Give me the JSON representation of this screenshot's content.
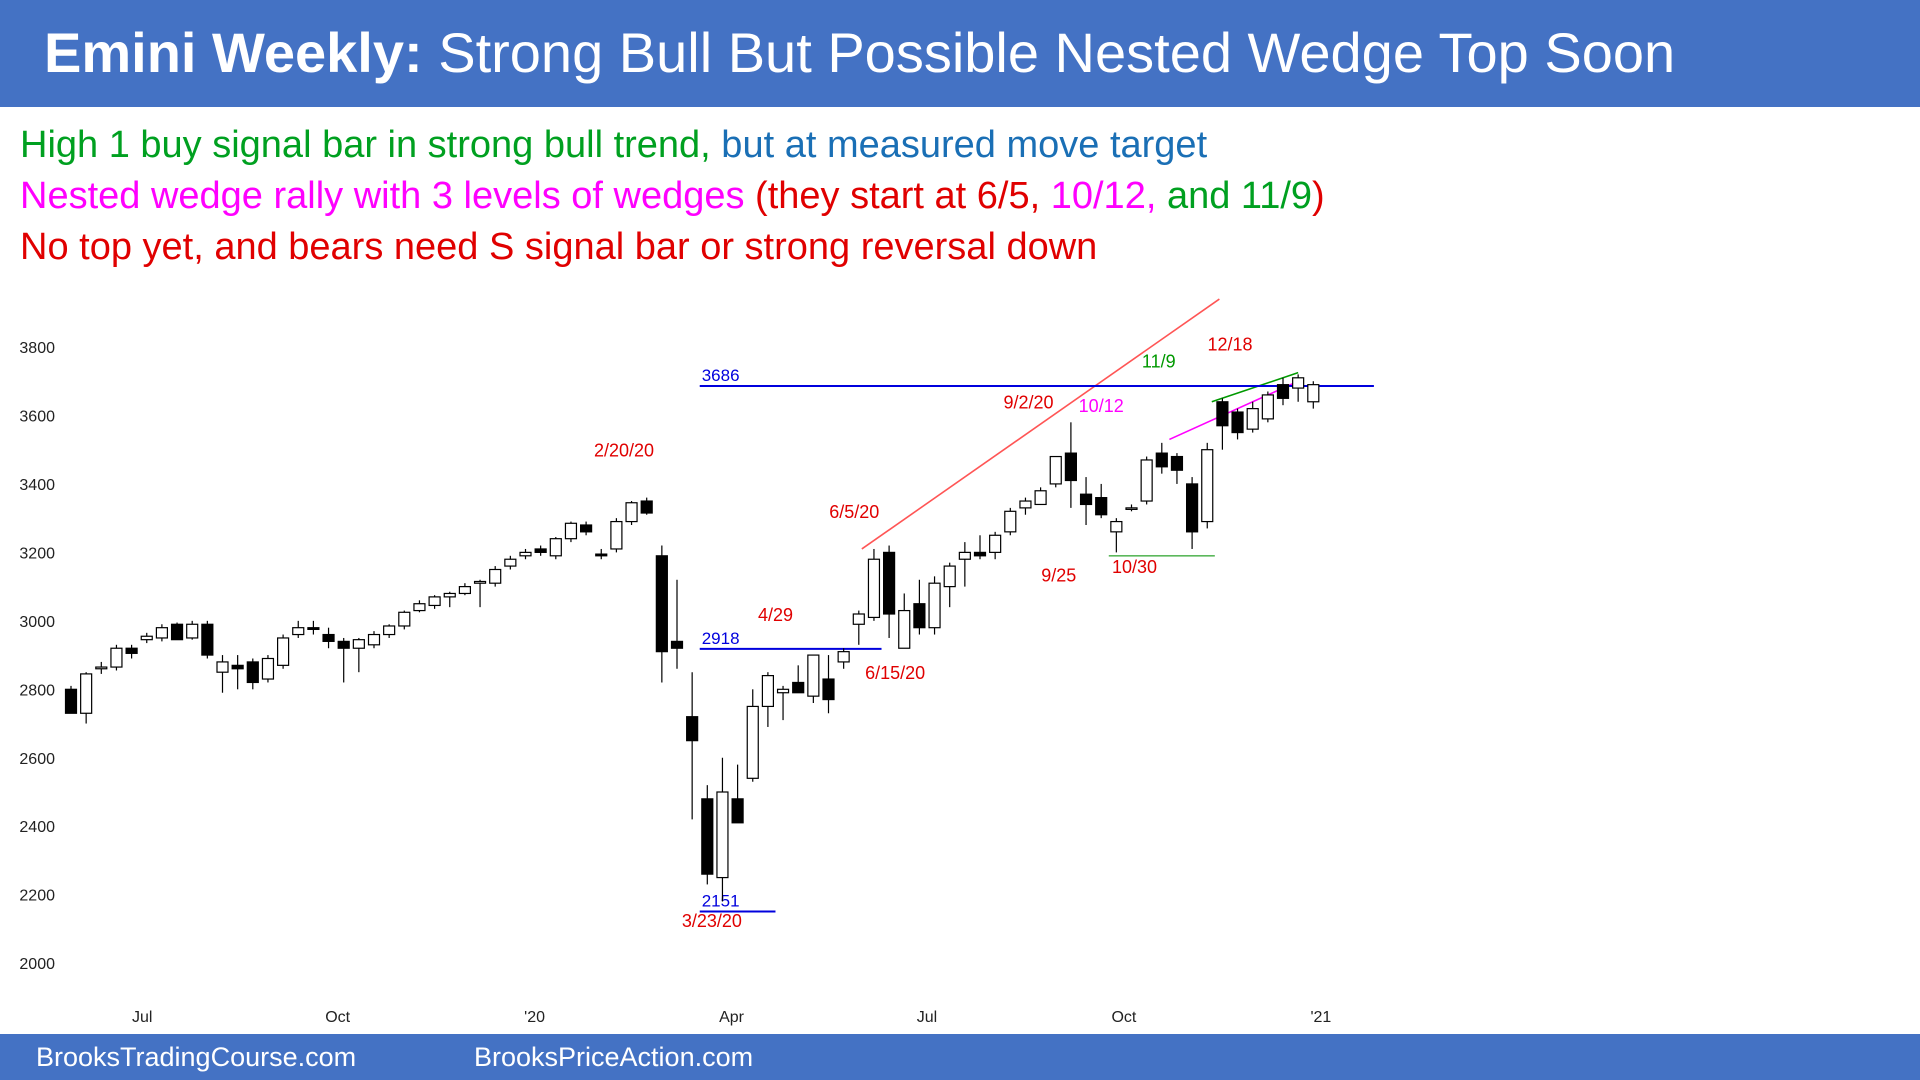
{
  "title": {
    "bold": "Emini Weekly:",
    "rest": "Strong Bull But Possible Nested Wedge Top Soon"
  },
  "notes": [
    [
      {
        "text": "High 1 buy signal bar in strong bull trend,",
        "color": "#00a020"
      },
      {
        "text": " but at measured move target",
        "color": "#1a6fb5"
      }
    ],
    [
      {
        "text": "Nested wedge rally with 3 levels of wedges ",
        "color": "#ff00ff"
      },
      {
        "text": "(they start at 6/5, ",
        "color": "#e00000"
      },
      {
        "text": "10/12,",
        "color": "#ff00ff"
      },
      {
        "text": " and 11/9",
        "color": "#00a020"
      },
      {
        "text": ")",
        "color": "#e00000"
      }
    ],
    [
      {
        "text": "No top yet, and bears need S signal bar or strong reversal down",
        "color": "#e00000"
      }
    ]
  ],
  "footer": {
    "left": "BrooksTradingCourse.com",
    "right": "BrooksPriceAction.com"
  },
  "chart_data": {
    "type": "candlestick",
    "title": "",
    "xlabel": "",
    "ylabel": "",
    "ylim": [
      1980,
      3800
    ],
    "xlim": [
      0,
      86
    ],
    "yticks": [
      2000,
      2200,
      2400,
      2600,
      2800,
      3000,
      3200,
      3400,
      3600,
      3800
    ],
    "xticks": [
      {
        "label": "Jul",
        "i": 4.7
      },
      {
        "label": "Oct",
        "i": 17.6
      },
      {
        "label": "'20",
        "i": 30.6
      },
      {
        "label": "Apr",
        "i": 43.6
      },
      {
        "label": "Jul",
        "i": 56.5
      },
      {
        "label": "Oct",
        "i": 69.5
      },
      {
        "label": "'21",
        "i": 82.5
      }
    ],
    "grid": false,
    "up_color": "#ffffff",
    "down_color": "#000000",
    "candles": [
      {
        "o": 2800,
        "h": 2810,
        "l": 2730,
        "c": 2730
      },
      {
        "o": 2730,
        "h": 2850,
        "l": 2700,
        "c": 2845
      },
      {
        "o": 2860,
        "h": 2880,
        "l": 2845,
        "c": 2865
      },
      {
        "o": 2865,
        "h": 2930,
        "l": 2855,
        "c": 2920
      },
      {
        "o": 2920,
        "h": 2930,
        "l": 2890,
        "c": 2905
      },
      {
        "o": 2945,
        "h": 2965,
        "l": 2935,
        "c": 2955
      },
      {
        "o": 2950,
        "h": 2990,
        "l": 2940,
        "c": 2980
      },
      {
        "o": 2990,
        "h": 2995,
        "l": 2950,
        "c": 2945
      },
      {
        "o": 2950,
        "h": 3000,
        "l": 2945,
        "c": 2990
      },
      {
        "o": 2990,
        "h": 3000,
        "l": 2890,
        "c": 2900
      },
      {
        "o": 2850,
        "h": 2900,
        "l": 2790,
        "c": 2880
      },
      {
        "o": 2870,
        "h": 2900,
        "l": 2800,
        "c": 2860
      },
      {
        "o": 2880,
        "h": 2890,
        "l": 2800,
        "c": 2820
      },
      {
        "o": 2830,
        "h": 2900,
        "l": 2820,
        "c": 2890
      },
      {
        "o": 2870,
        "h": 2960,
        "l": 2860,
        "c": 2950
      },
      {
        "o": 2960,
        "h": 3000,
        "l": 2950,
        "c": 2980
      },
      {
        "o": 2980,
        "h": 3000,
        "l": 2960,
        "c": 2975
      },
      {
        "o": 2960,
        "h": 2980,
        "l": 2920,
        "c": 2940
      },
      {
        "o": 2940,
        "h": 2950,
        "l": 2820,
        "c": 2920
      },
      {
        "o": 2920,
        "h": 2950,
        "l": 2850,
        "c": 2945
      },
      {
        "o": 2930,
        "h": 2970,
        "l": 2920,
        "c": 2960
      },
      {
        "o": 2960,
        "h": 2990,
        "l": 2950,
        "c": 2985
      },
      {
        "o": 2985,
        "h": 3030,
        "l": 2975,
        "c": 3025
      },
      {
        "o": 3030,
        "h": 3060,
        "l": 3025,
        "c": 3050
      },
      {
        "o": 3045,
        "h": 3075,
        "l": 3035,
        "c": 3070
      },
      {
        "o": 3070,
        "h": 3085,
        "l": 3040,
        "c": 3080
      },
      {
        "o": 3080,
        "h": 3110,
        "l": 3075,
        "c": 3100
      },
      {
        "o": 3110,
        "h": 3120,
        "l": 3040,
        "c": 3115
      },
      {
        "o": 3110,
        "h": 3160,
        "l": 3100,
        "c": 3150
      },
      {
        "o": 3160,
        "h": 3190,
        "l": 3150,
        "c": 3180
      },
      {
        "o": 3190,
        "h": 3210,
        "l": 3180,
        "c": 3200
      },
      {
        "o": 3210,
        "h": 3220,
        "l": 3190,
        "c": 3200
      },
      {
        "o": 3190,
        "h": 3245,
        "l": 3180,
        "c": 3240
      },
      {
        "o": 3240,
        "h": 3290,
        "l": 3230,
        "c": 3285
      },
      {
        "o": 3280,
        "h": 3290,
        "l": 3250,
        "c": 3260
      },
      {
        "o": 3195,
        "h": 3210,
        "l": 3180,
        "c": 3190
      },
      {
        "o": 3210,
        "h": 3300,
        "l": 3200,
        "c": 3290
      },
      {
        "o": 3290,
        "h": 3350,
        "l": 3280,
        "c": 3345
      },
      {
        "o": 3350,
        "h": 3360,
        "l": 3310,
        "c": 3315
      },
      {
        "o": 3190,
        "h": 3220,
        "l": 2820,
        "c": 2910
      },
      {
        "o": 2940,
        "h": 3120,
        "l": 2860,
        "c": 2920
      },
      {
        "o": 2720,
        "h": 2850,
        "l": 2420,
        "c": 2650
      },
      {
        "o": 2480,
        "h": 2520,
        "l": 2230,
        "c": 2260
      },
      {
        "o": 2250,
        "h": 2600,
        "l": 2180,
        "c": 2500
      },
      {
        "o": 2480,
        "h": 2580,
        "l": 2410,
        "c": 2410
      },
      {
        "o": 2540,
        "h": 2800,
        "l": 2530,
        "c": 2750
      },
      {
        "o": 2750,
        "h": 2850,
        "l": 2690,
        "c": 2840
      },
      {
        "o": 2790,
        "h": 2810,
        "l": 2710,
        "c": 2800
      },
      {
        "o": 2820,
        "h": 2870,
        "l": 2790,
        "c": 2790
      },
      {
        "o": 2780,
        "h": 2900,
        "l": 2760,
        "c": 2900
      },
      {
        "o": 2830,
        "h": 2900,
        "l": 2730,
        "c": 2770
      },
      {
        "o": 2880,
        "h": 2920,
        "l": 2860,
        "c": 2910
      },
      {
        "o": 2990,
        "h": 3030,
        "l": 2930,
        "c": 3020
      },
      {
        "o": 3010,
        "h": 3210,
        "l": 3000,
        "c": 3180
      },
      {
        "o": 3200,
        "h": 3220,
        "l": 2950,
        "c": 3020
      },
      {
        "o": 2920,
        "h": 3080,
        "l": 2920,
        "c": 3030
      },
      {
        "o": 3050,
        "h": 3120,
        "l": 2960,
        "c": 2980
      },
      {
        "o": 2980,
        "h": 3130,
        "l": 2960,
        "c": 3110
      },
      {
        "o": 3100,
        "h": 3170,
        "l": 3040,
        "c": 3160
      },
      {
        "o": 3180,
        "h": 3230,
        "l": 3100,
        "c": 3200
      },
      {
        "o": 3200,
        "h": 3250,
        "l": 3180,
        "c": 3190
      },
      {
        "o": 3200,
        "h": 3260,
        "l": 3180,
        "c": 3250
      },
      {
        "o": 3260,
        "h": 3330,
        "l": 3250,
        "c": 3320
      },
      {
        "o": 3330,
        "h": 3360,
        "l": 3310,
        "c": 3350
      },
      {
        "o": 3340,
        "h": 3390,
        "l": 3340,
        "c": 3380
      },
      {
        "o": 3400,
        "h": 3480,
        "l": 3390,
        "c": 3480
      },
      {
        "o": 3490,
        "h": 3580,
        "l": 3330,
        "c": 3410
      },
      {
        "o": 3370,
        "h": 3420,
        "l": 3280,
        "c": 3340
      },
      {
        "o": 3360,
        "h": 3400,
        "l": 3300,
        "c": 3310
      },
      {
        "o": 3260,
        "h": 3300,
        "l": 3200,
        "c": 3290
      },
      {
        "o": 3330,
        "h": 3340,
        "l": 3320,
        "c": 3330
      },
      {
        "o": 3350,
        "h": 3480,
        "l": 3340,
        "c": 3470
      },
      {
        "o": 3490,
        "h": 3520,
        "l": 3430,
        "c": 3450
      },
      {
        "o": 3480,
        "h": 3490,
        "l": 3400,
        "c": 3440
      },
      {
        "o": 3400,
        "h": 3420,
        "l": 3210,
        "c": 3260
      },
      {
        "o": 3290,
        "h": 3520,
        "l": 3270,
        "c": 3500
      },
      {
        "o": 3640,
        "h": 3650,
        "l": 3500,
        "c": 3570
      },
      {
        "o": 3610,
        "h": 3620,
        "l": 3530,
        "c": 3550
      },
      {
        "o": 3560,
        "h": 3640,
        "l": 3550,
        "c": 3620
      },
      {
        "o": 3590,
        "h": 3670,
        "l": 3580,
        "c": 3660
      },
      {
        "o": 3690,
        "h": 3710,
        "l": 3630,
        "c": 3650
      },
      {
        "o": 3680,
        "h": 3720,
        "l": 3640,
        "c": 3710
      },
      {
        "o": 3640,
        "h": 3700,
        "l": 3620,
        "c": 3690
      }
    ],
    "hlines": [
      {
        "label": "3686",
        "y": 3686,
        "i0": 41.5,
        "i1": 86,
        "color": "#0000dd"
      },
      {
        "label": "2918",
        "y": 2918,
        "i0": 41.5,
        "i1": 53.5,
        "color": "#0000dd"
      },
      {
        "label": "2151",
        "y": 2151,
        "i0": 41.5,
        "i1": 46.5,
        "color": "#0000dd"
      }
    ],
    "trendlines": [
      {
        "x0": 52.2,
        "y0": 3210,
        "x1": 75.8,
        "y1": 3940,
        "color": "#ff5555"
      },
      {
        "x0": 72.5,
        "y0": 3530,
        "x1": 81,
        "y1": 3700,
        "color": "#ff00ff"
      },
      {
        "x0": 75.3,
        "y0": 3640,
        "x1": 81,
        "y1": 3725,
        "color": "#009900"
      },
      {
        "x0": 68.5,
        "y0": 3190,
        "x1": 75.5,
        "y1": 3190,
        "color": "#5cb85c"
      }
    ],
    "annotations": [
      {
        "text": "2/20/20",
        "i": 36.5,
        "y": 3480,
        "color": "#e00000"
      },
      {
        "text": "3/23/20",
        "i": 42.3,
        "y": 2105,
        "color": "#e00000"
      },
      {
        "text": "4/29",
        "i": 46.5,
        "y": 3000,
        "color": "#e00000"
      },
      {
        "text": "6/5/20",
        "i": 51.7,
        "y": 3300,
        "color": "#e00000"
      },
      {
        "text": "6/15/20",
        "i": 54.4,
        "y": 2830,
        "color": "#e00000"
      },
      {
        "text": "9/2/20",
        "i": 63.2,
        "y": 3620,
        "color": "#e00000"
      },
      {
        "text": "9/25",
        "i": 65.2,
        "y": 3115,
        "color": "#e00000"
      },
      {
        "text": "10/12",
        "i": 68.0,
        "y": 3610,
        "color": "#ff00ff"
      },
      {
        "text": "10/30",
        "i": 70.2,
        "y": 3140,
        "color": "#e00000"
      },
      {
        "text": "11/9",
        "i": 71.8,
        "y": 3740,
        "color": "#009900"
      },
      {
        "text": "12/18",
        "i": 76.5,
        "y": 3790,
        "color": "#e00000"
      }
    ]
  }
}
